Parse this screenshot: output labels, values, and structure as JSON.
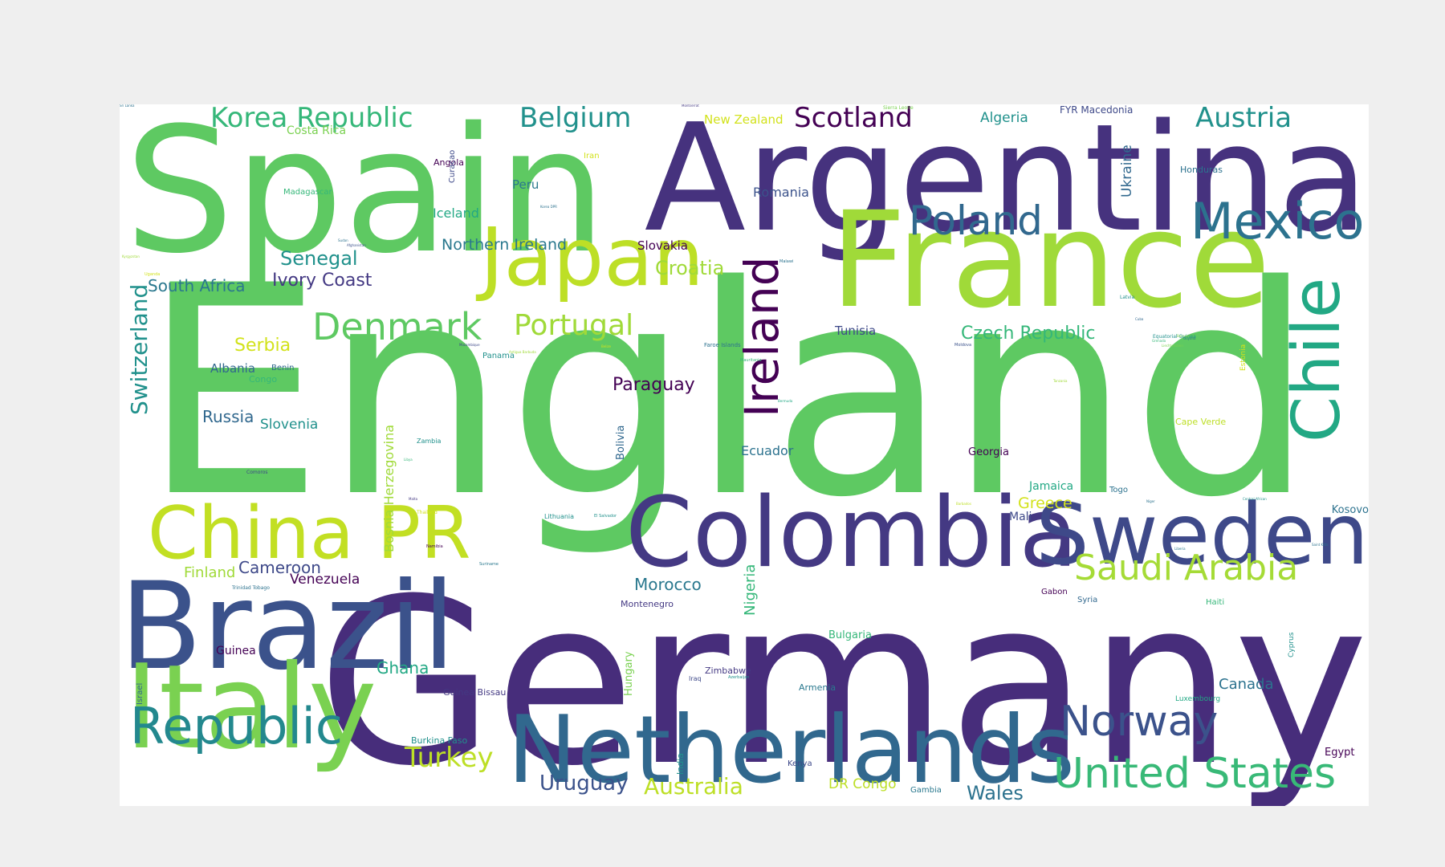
{
  "words": [
    {
      "text": "England",
      "color": "#5ec962",
      "size": 360,
      "vertical": false
    },
    {
      "text": "Germany",
      "color": "#472d7b",
      "size": 285,
      "vertical": false
    },
    {
      "text": "Spain",
      "color": "#5ec962",
      "size": 215,
      "vertical": false
    },
    {
      "text": "Argentina",
      "color": "#46327e",
      "size": 185,
      "vertical": false
    },
    {
      "text": "France",
      "color": "#a0da39",
      "size": 165,
      "vertical": false
    },
    {
      "text": "Brazil",
      "color": "#3b528b",
      "size": 150,
      "vertical": false
    },
    {
      "text": "Italy",
      "color": "#7ad151",
      "size": 145,
      "vertical": false
    },
    {
      "text": "Colombia",
      "color": "#443983",
      "size": 120,
      "vertical": false
    },
    {
      "text": "Netherlands",
      "color": "#31688e",
      "size": 116,
      "vertical": false
    },
    {
      "text": "Sweden",
      "color": "#3e4989",
      "size": 105,
      "vertical": false
    },
    {
      "text": "Japan",
      "color": "#bddf26",
      "size": 100,
      "vertical": false
    },
    {
      "text": "China PR",
      "color": "#c2df23",
      "size": 90,
      "vertical": false
    },
    {
      "text": "Chile",
      "color": "#22a884",
      "size": 82,
      "vertical": true
    },
    {
      "text": "Ireland",
      "color": "#440154",
      "size": 58,
      "vertical": true
    },
    {
      "text": "Republic",
      "color": "#23888e",
      "size": 62,
      "vertical": false
    },
    {
      "text": "Mexico",
      "color": "#2c728e",
      "size": 62,
      "vertical": false
    },
    {
      "text": "Norway",
      "color": "#3b528b",
      "size": 52,
      "vertical": false
    },
    {
      "text": "United States",
      "color": "#38b977",
      "size": 52,
      "vertical": false
    },
    {
      "text": "Poland",
      "color": "#31688e",
      "size": 50,
      "vertical": false
    },
    {
      "text": "Denmark",
      "color": "#5ec962",
      "size": 46,
      "vertical": false
    },
    {
      "text": "Saudi Arabia",
      "color": "#a5db36",
      "size": 44,
      "vertical": false
    },
    {
      "text": "Portugal",
      "color": "#a0da39",
      "size": 36,
      "vertical": false
    },
    {
      "text": "Korea Republic",
      "color": "#35b779",
      "size": 34,
      "vertical": false
    },
    {
      "text": "Belgium",
      "color": "#21918c",
      "size": 34,
      "vertical": false
    },
    {
      "text": "Scotland",
      "color": "#440154",
      "size": 34,
      "vertical": false
    },
    {
      "text": "Austria",
      "color": "#21918c",
      "size": 34,
      "vertical": false
    },
    {
      "text": "Turkey",
      "color": "#bddf26",
      "size": 34,
      "vertical": false
    },
    {
      "text": "Switzerland",
      "color": "#21918c",
      "size": 28,
      "vertical": true
    },
    {
      "text": "Australia",
      "color": "#bddf26",
      "size": 28,
      "vertical": false
    },
    {
      "text": "Uruguay",
      "color": "#3b528b",
      "size": 26,
      "vertical": false
    },
    {
      "text": "Croatia",
      "color": "#a0da39",
      "size": 24,
      "vertical": false
    },
    {
      "text": "Senegal",
      "color": "#21918c",
      "size": 24,
      "vertical": false
    },
    {
      "text": "Wales",
      "color": "#2c728e",
      "size": 24,
      "vertical": false
    },
    {
      "text": "Paraguay",
      "color": "#440154",
      "size": 22,
      "vertical": false
    },
    {
      "text": "Ivory Coast",
      "color": "#443983",
      "size": 22,
      "vertical": false
    },
    {
      "text": "Czech Republic",
      "color": "#35b779",
      "size": 22,
      "vertical": false
    },
    {
      "text": "Serbia",
      "color": "#d2e21b",
      "size": 22,
      "vertical": false
    },
    {
      "text": "South Africa",
      "color": "#2a788e",
      "size": 20,
      "vertical": false
    },
    {
      "text": "Morocco",
      "color": "#2a788e",
      "size": 20,
      "vertical": false
    },
    {
      "text": "Russia",
      "color": "#31688e",
      "size": 20,
      "vertical": false
    },
    {
      "text": "Ghana",
      "color": "#22a884",
      "size": 20,
      "vertical": false
    },
    {
      "text": "Cameroon",
      "color": "#3e4989",
      "size": 20,
      "vertical": false
    },
    {
      "text": "Northern Ireland",
      "color": "#2a788e",
      "size": 19,
      "vertical": false
    },
    {
      "text": "Greece",
      "color": "#d2e21b",
      "size": 19,
      "vertical": false
    },
    {
      "text": "Canada",
      "color": "#2c728e",
      "size": 18,
      "vertical": false
    },
    {
      "text": "Finland",
      "color": "#a0da39",
      "size": 18,
      "vertical": false
    },
    {
      "text": "Venezuela",
      "color": "#440154",
      "size": 17,
      "vertical": false
    },
    {
      "text": "Slovenia",
      "color": "#21918c",
      "size": 17,
      "vertical": false
    },
    {
      "text": "Algeria",
      "color": "#21918c",
      "size": 17,
      "vertical": false
    },
    {
      "text": "Romania",
      "color": "#3b528b",
      "size": 16,
      "vertical": false
    },
    {
      "text": "DR Congo",
      "color": "#bddf26",
      "size": 17,
      "vertical": false
    },
    {
      "text": "Bosnia Herzegovina",
      "color": "#a0da39",
      "size": 16,
      "vertical": true
    },
    {
      "text": "Nigeria",
      "color": "#35b779",
      "size": 18,
      "vertical": true
    },
    {
      "text": "Ukraine",
      "color": "#31688e",
      "size": 17,
      "vertical": true
    },
    {
      "text": "Ecuador",
      "color": "#2c728e",
      "size": 16,
      "vertical": false
    },
    {
      "text": "Iceland",
      "color": "#22a884",
      "size": 16,
      "vertical": false
    },
    {
      "text": "New Zealand",
      "color": "#d2e21b",
      "size": 15,
      "vertical": false
    },
    {
      "text": "Albania",
      "color": "#31688e",
      "size": 15,
      "vertical": false
    },
    {
      "text": "Tunisia",
      "color": "#3e4989",
      "size": 15,
      "vertical": false
    },
    {
      "text": "Peru",
      "color": "#2a788e",
      "size": 15,
      "vertical": false
    },
    {
      "text": "Slovakia",
      "color": "#440154",
      "size": 15,
      "vertical": false
    },
    {
      "text": "Costa Rica",
      "color": "#7ad151",
      "size": 14,
      "vertical": false
    },
    {
      "text": "Guinea",
      "color": "#440154",
      "size": 14,
      "vertical": false
    },
    {
      "text": "Mali",
      "color": "#3e4989",
      "size": 14,
      "vertical": false
    },
    {
      "text": "Jamaica",
      "color": "#22a884",
      "size": 14,
      "vertical": false
    },
    {
      "text": "Bulgaria",
      "color": "#35b779",
      "size": 13,
      "vertical": false
    },
    {
      "text": "Kosovo",
      "color": "#2c728e",
      "size": 13,
      "vertical": false
    },
    {
      "text": "Egypt",
      "color": "#440154",
      "size": 13,
      "vertical": false
    },
    {
      "text": "Georgia",
      "color": "#440154",
      "size": 13,
      "vertical": false
    },
    {
      "text": "Hungary",
      "color": "#7ad151",
      "size": 13,
      "vertical": true
    },
    {
      "text": "Bolivia",
      "color": "#31688e",
      "size": 13,
      "vertical": true
    },
    {
      "text": "FYR Macedonia",
      "color": "#3e4989",
      "size": 12,
      "vertical": false
    },
    {
      "text": "Montenegro",
      "color": "#443983",
      "size": 11,
      "vertical": false
    },
    {
      "text": "Honduras",
      "color": "#2c728e",
      "size": 11,
      "vertical": false
    },
    {
      "text": "Congo",
      "color": "#35b779",
      "size": 11,
      "vertical": false
    },
    {
      "text": "Burkina Faso",
      "color": "#21918c",
      "size": 11,
      "vertical": false
    },
    {
      "text": "Guinea Bissau",
      "color": "#443983",
      "size": 11,
      "vertical": false
    },
    {
      "text": "Armenia",
      "color": "#2a788e",
      "size": 11,
      "vertical": false
    },
    {
      "text": "Zimbabwe",
      "color": "#443983",
      "size": 11,
      "vertical": false
    },
    {
      "text": "Cape Verde",
      "color": "#bddf26",
      "size": 11,
      "vertical": false
    },
    {
      "text": "Angola",
      "color": "#440154",
      "size": 11,
      "vertical": false
    },
    {
      "text": "Madagascar",
      "color": "#35b779",
      "size": 10,
      "vertical": false
    },
    {
      "text": "Gabon",
      "color": "#440154",
      "size": 10,
      "vertical": false
    },
    {
      "text": "Togo",
      "color": "#2c728e",
      "size": 10,
      "vertical": false
    },
    {
      "text": "Benin",
      "color": "#31688e",
      "size": 10,
      "vertical": false
    },
    {
      "text": "Panama",
      "color": "#21918c",
      "size": 10,
      "vertical": false
    },
    {
      "text": "Syria",
      "color": "#31688e",
      "size": 10,
      "vertical": false
    },
    {
      "text": "Haiti",
      "color": "#35b779",
      "size": 10,
      "vertical": false
    },
    {
      "text": "Gambia",
      "color": "#2a788e",
      "size": 10,
      "vertical": false
    },
    {
      "text": "Kenya",
      "color": "#3e4989",
      "size": 10,
      "vertical": false
    },
    {
      "text": "Luxembourg",
      "color": "#22a884",
      "size": 9,
      "vertical": false
    },
    {
      "text": "Iran",
      "color": "#d2e21b",
      "size": 10,
      "vertical": false
    },
    {
      "text": "Curacao",
      "color": "#3e4989",
      "size": 10,
      "vertical": true
    },
    {
      "text": "India",
      "color": "#21918c",
      "size": 11,
      "vertical": true
    },
    {
      "text": "Israel",
      "color": "#31688e",
      "size": 10,
      "vertical": true
    },
    {
      "text": "Cyprus",
      "color": "#21918c",
      "size": 9,
      "vertical": true
    },
    {
      "text": "Estonia",
      "color": "#d2e21b",
      "size": 9,
      "vertical": true
    },
    {
      "text": "Lithuania",
      "color": "#21918c",
      "size": 8,
      "vertical": false
    },
    {
      "text": "Zambia",
      "color": "#21918c",
      "size": 8,
      "vertical": false
    },
    {
      "text": "Iraq",
      "color": "#3e4989",
      "size": 8,
      "vertical": false
    },
    {
      "text": "Faroe Islands",
      "color": "#2c728e",
      "size": 7,
      "vertical": false
    },
    {
      "text": "Latvia",
      "color": "#21918c",
      "size": 6,
      "vertical": false
    },
    {
      "text": "Sierra Leone",
      "color": "#7ad151",
      "size": 6,
      "vertical": false
    },
    {
      "text": "Trinidad Tobago",
      "color": "#2c728e",
      "size": 6,
      "vertical": false
    },
    {
      "text": "Equatorial Guinea",
      "color": "#21918c",
      "size": 6,
      "vertical": false
    },
    {
      "text": "Suriname",
      "color": "#2a788e",
      "size": 5,
      "vertical": false
    },
    {
      "text": "Comoros",
      "color": "#3e4989",
      "size": 6,
      "vertical": false
    },
    {
      "text": "Thailand",
      "color": "#d2e21b",
      "size": 6,
      "vertical": false
    },
    {
      "text": "Namibia",
      "color": "#440154",
      "size": 5,
      "vertical": false
    },
    {
      "text": "Mauritania",
      "color": "#35b779",
      "size": 5,
      "vertical": false
    },
    {
      "text": "El Salvador",
      "color": "#21918c",
      "size": 5,
      "vertical": false
    },
    {
      "text": "Malawi",
      "color": "#2c728e",
      "size": 5,
      "vertical": false
    },
    {
      "text": "Azerbaijan",
      "color": "#21918c",
      "size": 5,
      "vertical": false
    },
    {
      "text": "Moldova",
      "color": "#3b528b",
      "size": 5,
      "vertical": false
    },
    {
      "text": "Afghanistan",
      "color": "#3b528b",
      "size": 4,
      "vertical": false
    },
    {
      "text": "Uganda",
      "color": "#d2e21b",
      "size": 5,
      "vertical": false
    },
    {
      "text": "Montserrat",
      "color": "#443983",
      "size": 4,
      "vertical": false
    },
    {
      "text": "Sudan",
      "color": "#2c728e",
      "size": 4,
      "vertical": false
    },
    {
      "text": "Korea DPR",
      "color": "#2c728e",
      "size": 4,
      "vertical": false
    },
    {
      "text": "Cuba",
      "color": "#31688e",
      "size": 4,
      "vertical": false
    },
    {
      "text": "Mozambique",
      "color": "#3e4989",
      "size": 4,
      "vertical": false
    },
    {
      "text": "Antigua Barbuda",
      "color": "#a0da39",
      "size": 4,
      "vertical": false
    },
    {
      "text": "Libya",
      "color": "#35b779",
      "size": 4,
      "vertical": false
    },
    {
      "text": "Bermuda",
      "color": "#22a884",
      "size": 4,
      "vertical": false
    },
    {
      "text": "Tanzania",
      "color": "#a0da39",
      "size": 4,
      "vertical": false
    },
    {
      "text": "Barbados",
      "color": "#bddf26",
      "size": 4,
      "vertical": false
    },
    {
      "text": "Niger",
      "color": "#2c728e",
      "size": 4,
      "vertical": false
    },
    {
      "text": "Central African",
      "color": "#21918c",
      "size": 4,
      "vertical": false
    },
    {
      "text": "Liberia",
      "color": "#2a788e",
      "size": 4,
      "vertical": false
    },
    {
      "text": "Saint Kitts",
      "color": "#2c728e",
      "size": 4,
      "vertical": false
    },
    {
      "text": "Grenada",
      "color": "#35b779",
      "size": 4,
      "vertical": false
    },
    {
      "text": "Liechtenstein",
      "color": "#7ad151",
      "size": 4,
      "vertical": false
    },
    {
      "text": "Burundi",
      "color": "#7ad151",
      "size": 4,
      "vertical": false
    },
    {
      "text": "Guyana",
      "color": "#2c728e",
      "size": 4,
      "vertical": false
    },
    {
      "text": "Kyrgyzstan",
      "color": "#a0da39",
      "size": 4,
      "vertical": false
    },
    {
      "text": "Malta",
      "color": "#443983",
      "size": 4,
      "vertical": false
    },
    {
      "text": "Belize",
      "color": "#d2e21b",
      "size": 4,
      "vertical": false
    },
    {
      "text": "Sri Lanka",
      "color": "#2c728e",
      "size": 4,
      "vertical": false
    }
  ]
}
